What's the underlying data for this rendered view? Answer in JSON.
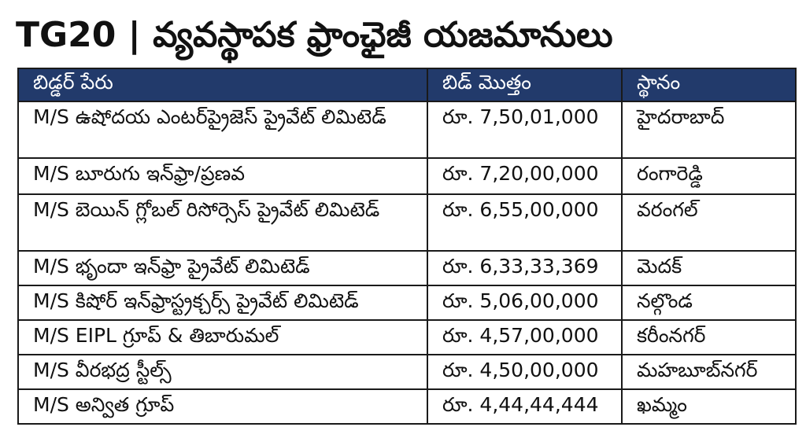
{
  "title": "TG20 | వ్యవస్థాపక ఫ్రాంఛైజీ యజమానులు",
  "table": {
    "headers": [
      "బిడ్డర్ పేరు",
      "బిడ్ మొత్తం",
      "స్థానం"
    ],
    "rows": [
      {
        "name": "M/S ఉషోదయ ఎంటర్‌ప్రైజెస్ ప్రైవేట్ లిమిటెడ్",
        "amount": "రూ. 7,50,01,000",
        "location": "హైదరాబాద్"
      },
      {
        "name": "M/S బూరుగు ఇన్‌ఫ్రా/ప్రణవ",
        "amount": "రూ. 7,20,00,000",
        "location": "రంగారెడ్డి"
      },
      {
        "name": "M/S బెయిన్ గ్లోబల్ రిసోర్సెస్ ప్రైవేట్ లిమిటెడ్",
        "amount": "రూ. 6,55,00,000",
        "location": "వరంగల్"
      },
      {
        "name": "M/S భృందా ఇన్‌ఫ్రా ప్రైవేట్ లిమిటెడ్",
        "amount": "రూ. 6,33,33,369",
        "location": "మెదక్"
      },
      {
        "name": "M/S కిషోర్ ఇన్‌ఫ్రాస్ట్రక్చర్స్ ప్రైవేట్ లిమిటెడ్",
        "amount": "రూ. 5,06,00,000",
        "location": "నల్గొండ"
      },
      {
        "name": "M/S EIPL గ్రూప్ & తిబారుమల్",
        "amount": "రూ. 4,57,00,000",
        "location": "కరీంనగర్"
      },
      {
        "name": "M/S వీరభద్ర స్టీల్స్",
        "amount": "రూ. 4,50,00,000",
        "location": "మహబూబ్‌నగర్"
      },
      {
        "name": "M/S అన్విత గ్రూప్",
        "amount": "రూ. 4,44,44,444",
        "location": "ఖమ్మం"
      }
    ]
  }
}
